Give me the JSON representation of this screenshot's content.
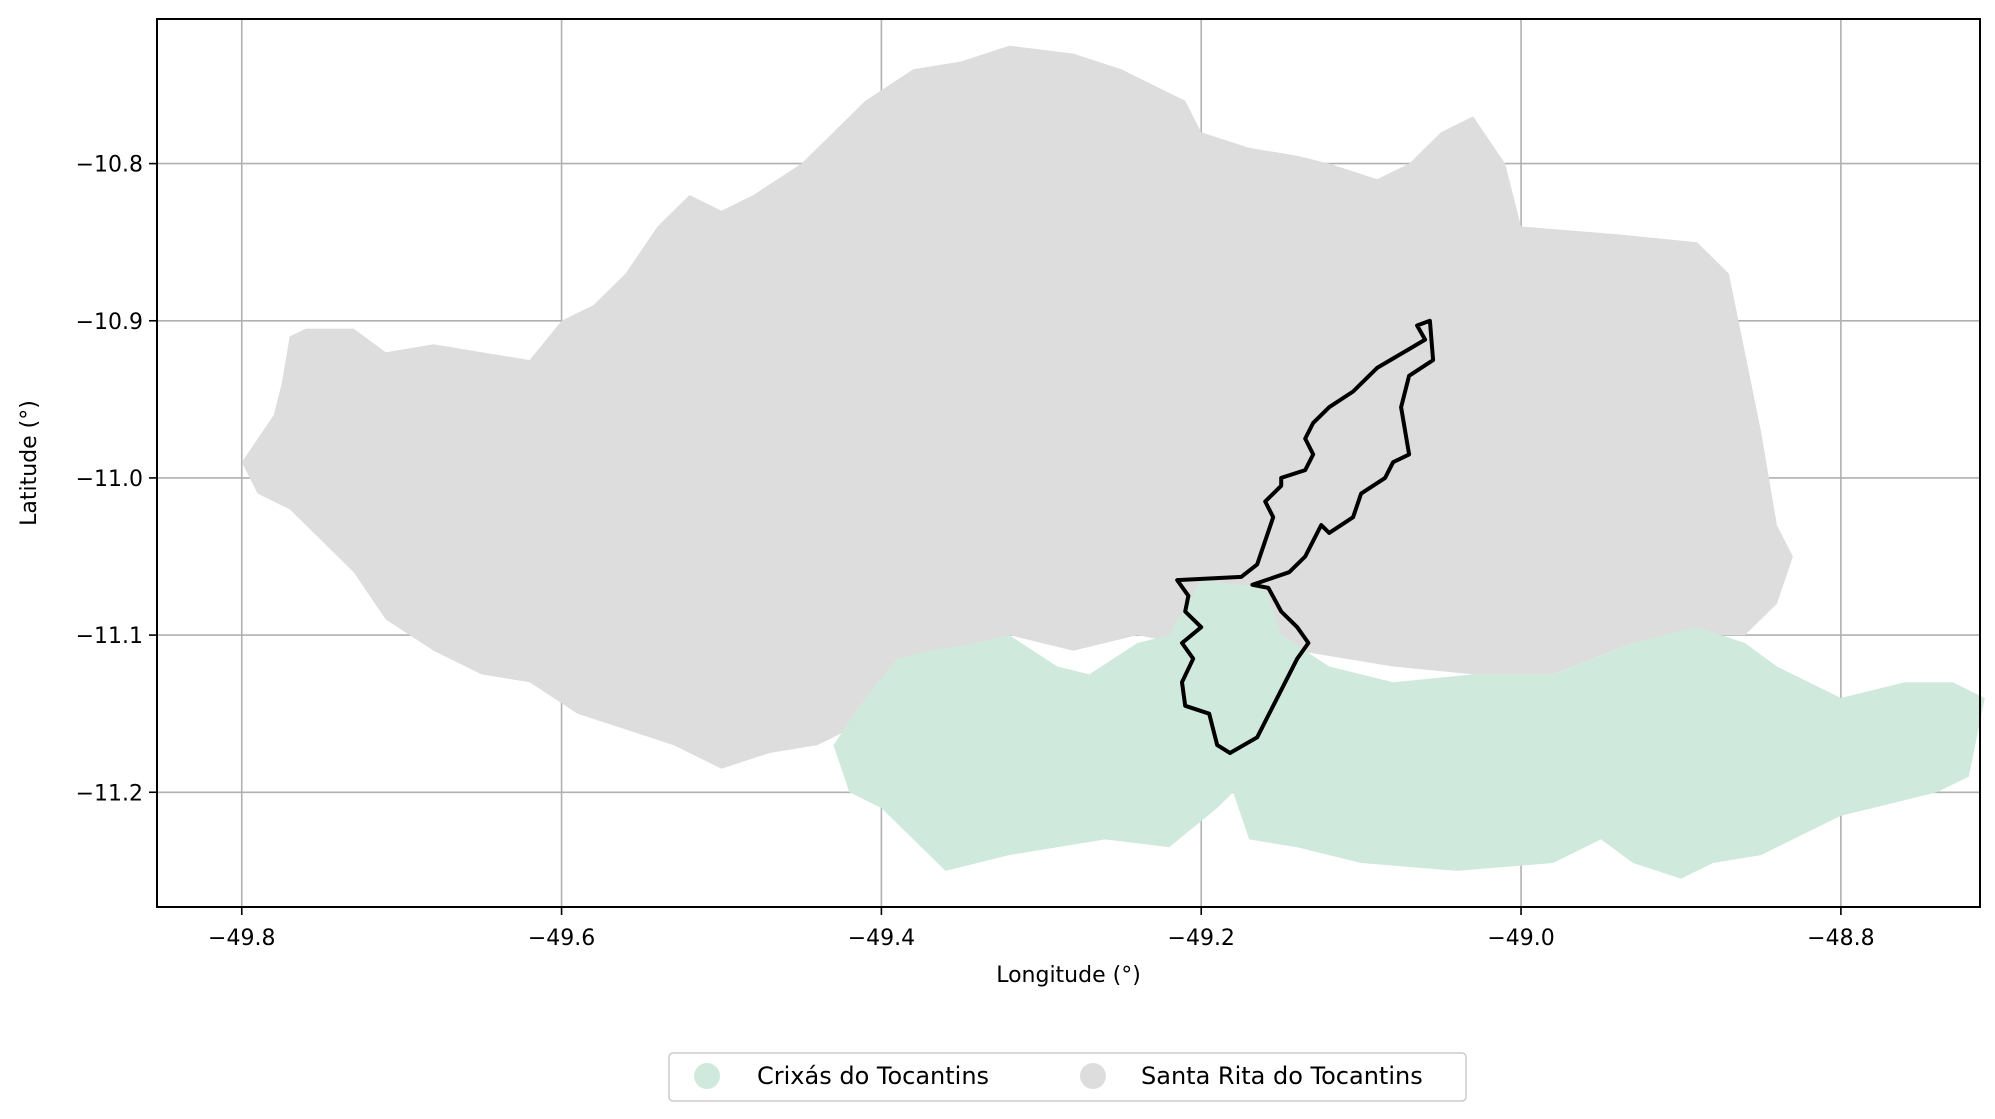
{
  "chart_data": {
    "type": "map",
    "xlabel": "Longitude (°)",
    "ylabel": "Latitude (°)",
    "xlim": [
      -49.853,
      -48.713
    ],
    "ylim": [
      -11.273,
      -10.708
    ],
    "xticks": [
      -49.8,
      -49.6,
      -49.4,
      -49.2,
      -49.0,
      -48.8
    ],
    "yticks": [
      -10.8,
      -10.9,
      -11.0,
      -11.1,
      -11.2
    ],
    "xtick_labels": [
      "−49.8",
      "−49.6",
      "−49.4",
      "−49.2",
      "−49.0",
      "−48.8"
    ],
    "ytick_labels": [
      "−10.8",
      "−10.9",
      "−11.0",
      "−11.1",
      "−11.2"
    ],
    "grid": true,
    "legend_position": "bottom-center",
    "series": [
      {
        "name": "Santa Rita do Tocantins",
        "color": "#dddddd",
        "polygon": [
          [
            -49.79,
            -11.01
          ],
          [
            -49.8,
            -10.99
          ],
          [
            -49.78,
            -10.96
          ],
          [
            -49.775,
            -10.94
          ],
          [
            -49.77,
            -10.91
          ],
          [
            -49.76,
            -10.905
          ],
          [
            -49.73,
            -10.905
          ],
          [
            -49.71,
            -10.92
          ],
          [
            -49.68,
            -10.915
          ],
          [
            -49.65,
            -10.92
          ],
          [
            -49.62,
            -10.925
          ],
          [
            -49.6,
            -10.9
          ],
          [
            -49.58,
            -10.89
          ],
          [
            -49.56,
            -10.87
          ],
          [
            -49.54,
            -10.84
          ],
          [
            -49.52,
            -10.82
          ],
          [
            -49.5,
            -10.83
          ],
          [
            -49.48,
            -10.82
          ],
          [
            -49.45,
            -10.8
          ],
          [
            -49.43,
            -10.78
          ],
          [
            -49.41,
            -10.76
          ],
          [
            -49.38,
            -10.74
          ],
          [
            -49.35,
            -10.735
          ],
          [
            -49.32,
            -10.725
          ],
          [
            -49.28,
            -10.73
          ],
          [
            -49.25,
            -10.74
          ],
          [
            -49.22,
            -10.755
          ],
          [
            -49.21,
            -10.76
          ],
          [
            -49.2,
            -10.78
          ],
          [
            -49.17,
            -10.79
          ],
          [
            -49.14,
            -10.795
          ],
          [
            -49.12,
            -10.8
          ],
          [
            -49.09,
            -10.81
          ],
          [
            -49.07,
            -10.8
          ],
          [
            -49.05,
            -10.78
          ],
          [
            -49.03,
            -10.77
          ],
          [
            -49.01,
            -10.8
          ],
          [
            -49.0,
            -10.84
          ],
          [
            -48.94,
            -10.845
          ],
          [
            -48.89,
            -10.85
          ],
          [
            -48.87,
            -10.87
          ],
          [
            -48.86,
            -10.92
          ],
          [
            -48.85,
            -10.97
          ],
          [
            -48.845,
            -11.0
          ],
          [
            -48.84,
            -11.03
          ],
          [
            -48.83,
            -11.05
          ],
          [
            -48.84,
            -11.08
          ],
          [
            -48.86,
            -11.1
          ],
          [
            -48.89,
            -11.1
          ],
          [
            -48.93,
            -11.105
          ],
          [
            -48.98,
            -11.125
          ],
          [
            -49.03,
            -11.125
          ],
          [
            -49.08,
            -11.12
          ],
          [
            -49.14,
            -11.11
          ],
          [
            -49.19,
            -11.11
          ],
          [
            -49.24,
            -11.1
          ],
          [
            -49.28,
            -11.11
          ],
          [
            -49.32,
            -11.1
          ],
          [
            -49.36,
            -11.11
          ],
          [
            -49.4,
            -11.13
          ],
          [
            -49.42,
            -11.16
          ],
          [
            -49.44,
            -11.17
          ],
          [
            -49.47,
            -11.175
          ],
          [
            -49.5,
            -11.185
          ],
          [
            -49.53,
            -11.17
          ],
          [
            -49.56,
            -11.16
          ],
          [
            -49.59,
            -11.15
          ],
          [
            -49.62,
            -11.13
          ],
          [
            -49.65,
            -11.125
          ],
          [
            -49.68,
            -11.11
          ],
          [
            -49.71,
            -11.09
          ],
          [
            -49.73,
            -11.06
          ],
          [
            -49.75,
            -11.04
          ],
          [
            -49.77,
            -11.02
          ]
        ]
      },
      {
        "name": "Crixás do Tocantins",
        "color": "#cfeadd",
        "polygon": [
          [
            -49.43,
            -11.17
          ],
          [
            -49.41,
            -11.14
          ],
          [
            -49.39,
            -11.115
          ],
          [
            -49.37,
            -11.11
          ],
          [
            -49.34,
            -11.105
          ],
          [
            -49.32,
            -11.1
          ],
          [
            -49.29,
            -11.12
          ],
          [
            -49.27,
            -11.125
          ],
          [
            -49.24,
            -11.105
          ],
          [
            -49.22,
            -11.1
          ],
          [
            -49.2,
            -11.065
          ],
          [
            -49.16,
            -11.07
          ],
          [
            -49.15,
            -11.1
          ],
          [
            -49.12,
            -11.12
          ],
          [
            -49.08,
            -11.13
          ],
          [
            -49.03,
            -11.125
          ],
          [
            -48.98,
            -11.125
          ],
          [
            -48.93,
            -11.105
          ],
          [
            -48.89,
            -11.095
          ],
          [
            -48.86,
            -11.105
          ],
          [
            -48.84,
            -11.12
          ],
          [
            -48.8,
            -11.14
          ],
          [
            -48.76,
            -11.13
          ],
          [
            -48.73,
            -11.13
          ],
          [
            -48.71,
            -11.14
          ],
          [
            -48.72,
            -11.19
          ],
          [
            -48.74,
            -11.2
          ],
          [
            -48.78,
            -11.21
          ],
          [
            -48.8,
            -11.215
          ],
          [
            -48.83,
            -11.23
          ],
          [
            -48.85,
            -11.24
          ],
          [
            -48.88,
            -11.245
          ],
          [
            -48.9,
            -11.255
          ],
          [
            -48.93,
            -11.245
          ],
          [
            -48.95,
            -11.23
          ],
          [
            -48.98,
            -11.245
          ],
          [
            -49.04,
            -11.25
          ],
          [
            -49.1,
            -11.245
          ],
          [
            -49.14,
            -11.235
          ],
          [
            -49.17,
            -11.23
          ],
          [
            -49.18,
            -11.2
          ],
          [
            -49.19,
            -11.21
          ],
          [
            -49.22,
            -11.235
          ],
          [
            -49.26,
            -11.23
          ],
          [
            -49.29,
            -11.235
          ],
          [
            -49.32,
            -11.24
          ],
          [
            -49.36,
            -11.25
          ],
          [
            -49.38,
            -11.23
          ],
          [
            -49.4,
            -11.21
          ],
          [
            -49.42,
            -11.2
          ]
        ]
      }
    ],
    "outline": {
      "color": "#000000",
      "polygon": [
        [
          -49.057,
          -10.9
        ],
        [
          -49.055,
          -10.925
        ],
        [
          -49.07,
          -10.935
        ],
        [
          -49.075,
          -10.955
        ],
        [
          -49.07,
          -10.985
        ],
        [
          -49.08,
          -10.99
        ],
        [
          -49.085,
          -11.0
        ],
        [
          -49.1,
          -11.01
        ],
        [
          -49.105,
          -11.025
        ],
        [
          -49.12,
          -11.035
        ],
        [
          -49.125,
          -11.03
        ],
        [
          -49.13,
          -11.04
        ],
        [
          -49.135,
          -11.05
        ],
        [
          -49.145,
          -11.06
        ],
        [
          -49.168,
          -11.068
        ],
        [
          -49.158,
          -11.07
        ],
        [
          -49.15,
          -11.085
        ],
        [
          -49.14,
          -11.095
        ],
        [
          -49.133,
          -11.105
        ],
        [
          -49.14,
          -11.115
        ],
        [
          -49.155,
          -11.145
        ],
        [
          -49.165,
          -11.165
        ],
        [
          -49.182,
          -11.175
        ],
        [
          -49.19,
          -11.17
        ],
        [
          -49.195,
          -11.15
        ],
        [
          -49.21,
          -11.145
        ],
        [
          -49.212,
          -11.13
        ],
        [
          -49.205,
          -11.115
        ],
        [
          -49.212,
          -11.105
        ],
        [
          -49.2,
          -11.095
        ],
        [
          -49.21,
          -11.085
        ],
        [
          -49.208,
          -11.075
        ],
        [
          -49.215,
          -11.065
        ],
        [
          -49.175,
          -11.063
        ],
        [
          -49.165,
          -11.055
        ],
        [
          -49.16,
          -11.04
        ],
        [
          -49.155,
          -11.025
        ],
        [
          -49.16,
          -11.015
        ],
        [
          -49.15,
          -11.005
        ],
        [
          -49.15,
          -11.0
        ],
        [
          -49.135,
          -10.995
        ],
        [
          -49.13,
          -10.985
        ],
        [
          -49.135,
          -10.975
        ],
        [
          -49.13,
          -10.965
        ],
        [
          -49.12,
          -10.955
        ],
        [
          -49.105,
          -10.945
        ],
        [
          -49.09,
          -10.93
        ],
        [
          -49.07,
          -10.918
        ],
        [
          -49.06,
          -10.912
        ],
        [
          -49.065,
          -10.903
        ]
      ]
    },
    "legend": [
      {
        "name": "Crixás do Tocantins",
        "color": "#cfeadd"
      },
      {
        "name": "Santa Rita do Tocantins",
        "color": "#dddddd"
      }
    ]
  }
}
